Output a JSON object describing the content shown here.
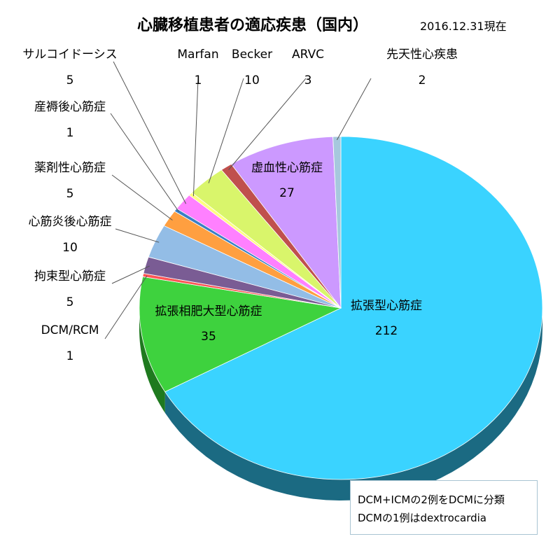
{
  "header": {
    "title": "心臓移植患者の適応疾患（国内）",
    "as_of": "2016.12.31現在"
  },
  "note": {
    "lines": [
      "DCM+ICMの2例をDCMに分類",
      "DCMの1例はdextrocardia"
    ]
  },
  "chart_data": {
    "type": "pie",
    "title": "心臓移植患者の適応疾患（国内）",
    "subtitle": "2016.12.31現在",
    "three_d": true,
    "start": "12 o'clock",
    "direction": "clockwise",
    "slices": [
      {
        "label": "拡張型心筋症",
        "value": 212,
        "color": "#3ad3ff",
        "side_color": "#1b6a82",
        "label_placement": "inside"
      },
      {
        "label": "拡張相肥大型心筋症",
        "value": 35,
        "color": "#3ed23e",
        "side_color": "#1f7a1f",
        "label_placement": "inside"
      },
      {
        "label": "DCM/RCM",
        "value": 1,
        "color": "#ff5555",
        "side_color": "#992222",
        "label_placement": "outside"
      },
      {
        "label": "拘束型心筋症",
        "value": 5,
        "color": "#7a5c94",
        "side_color": "#3f2f4d",
        "label_placement": "outside"
      },
      {
        "label": "心筋炎後心筋症",
        "value": 10,
        "color": "#93bde6",
        "side_color": "#4d6f92",
        "label_placement": "outside"
      },
      {
        "label": "薬剤性心筋症",
        "value": 5,
        "color": "#ff9f40",
        "side_color": "#99601f",
        "label_placement": "outside"
      },
      {
        "label": "産褥後心筋症",
        "value": 1,
        "color": "#3b7fc4",
        "side_color": "#1f4470",
        "label_placement": "outside"
      },
      {
        "label": "サルコイドーシス",
        "value": 5,
        "color": "#ff80ff",
        "side_color": "#994c99",
        "label_placement": "outside"
      },
      {
        "label": "Marfan",
        "value": 1,
        "color": "#ffff80",
        "side_color": "#99994c",
        "label_placement": "outside"
      },
      {
        "label": "Becker",
        "value": 10,
        "color": "#d9f56b",
        "side_color": "#7f9135",
        "label_placement": "outside"
      },
      {
        "label": "ARVC",
        "value": 3,
        "color": "#c0504d",
        "side_color": "#6e2a28",
        "label_placement": "outside"
      },
      {
        "label": "虚血性心筋症",
        "value": 27,
        "color": "#cc99ff",
        "side_color": "#735799",
        "label_placement": "inside"
      },
      {
        "label": "先天性心疾患",
        "value": 2,
        "color": "#a6c8dd",
        "side_color": "#5f7a8a",
        "label_placement": "outside"
      }
    ]
  }
}
